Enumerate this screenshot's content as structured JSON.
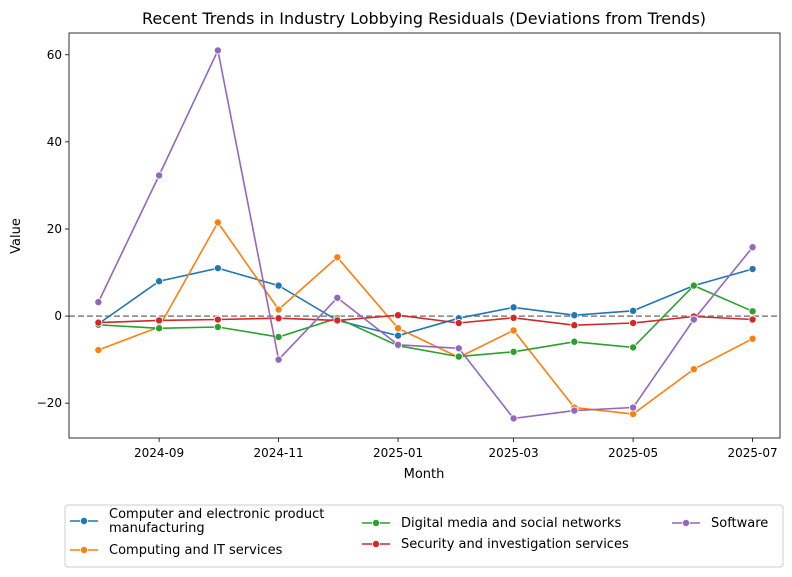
{
  "chart_data": {
    "type": "line",
    "title": "Recent Trends in Industry Lobbying Residuals (Deviations from Trends)",
    "xlabel": "Month",
    "ylabel": "Value",
    "x": [
      "2024-08",
      "2024-09",
      "2024-10",
      "2024-11",
      "2024-12",
      "2025-01",
      "2025-02",
      "2025-03",
      "2025-04",
      "2025-05",
      "2025-06",
      "2025-07"
    ],
    "x_ticks": [
      "2024-09",
      "2024-11",
      "2025-01",
      "2025-03",
      "2025-05",
      "2025-07"
    ],
    "y_ticks": [
      -20,
      0,
      20,
      40,
      60
    ],
    "xlim": [
      "2024-07-17",
      "2025-07-15"
    ],
    "ylim": [
      -28,
      65
    ],
    "reference_line": {
      "y": 0,
      "style": "dashed",
      "color": "#808080"
    },
    "grid": false,
    "legend_position": "bottom-outside",
    "series": [
      {
        "name": "Computer and electronic product manufacturing",
        "legend_lines": [
          "Computer and electronic product",
          "manufacturing"
        ],
        "color": "#1f77b4",
        "values": [
          -1.8,
          8.0,
          11.0,
          7.0,
          -1.0,
          -4.5,
          -0.5,
          2.0,
          0.2,
          1.2,
          7.0,
          10.8
        ]
      },
      {
        "name": "Computing and IT services",
        "legend_lines": [
          "Computing and IT services"
        ],
        "color": "#ff7f0e",
        "values": [
          -7.8,
          -2.5,
          21.5,
          1.5,
          13.5,
          -2.8,
          -9.5,
          -3.3,
          -21.0,
          -22.5,
          -12.2,
          -5.2
        ]
      },
      {
        "name": "Digital media and social networks",
        "legend_lines": [
          "Digital media and social networks"
        ],
        "color": "#2ca02c",
        "values": [
          -2.0,
          -2.8,
          -2.5,
          -4.8,
          -0.5,
          -6.8,
          -9.3,
          -8.2,
          -5.9,
          -7.2,
          7.0,
          1.1
        ]
      },
      {
        "name": "Security and investigation services",
        "legend_lines": [
          "Security and investigation services"
        ],
        "color": "#d62728",
        "values": [
          -1.5,
          -1.0,
          -0.8,
          -0.5,
          -1.0,
          0.2,
          -1.6,
          -0.4,
          -2.1,
          -1.6,
          -0.1,
          -0.8
        ]
      },
      {
        "name": "Software",
        "legend_lines": [
          "Software"
        ],
        "color": "#9467bd",
        "values": [
          3.2,
          32.3,
          61.0,
          -10.0,
          4.2,
          -6.6,
          -7.4,
          -23.5,
          -21.7,
          -21.0,
          -0.8,
          15.8
        ]
      }
    ]
  }
}
